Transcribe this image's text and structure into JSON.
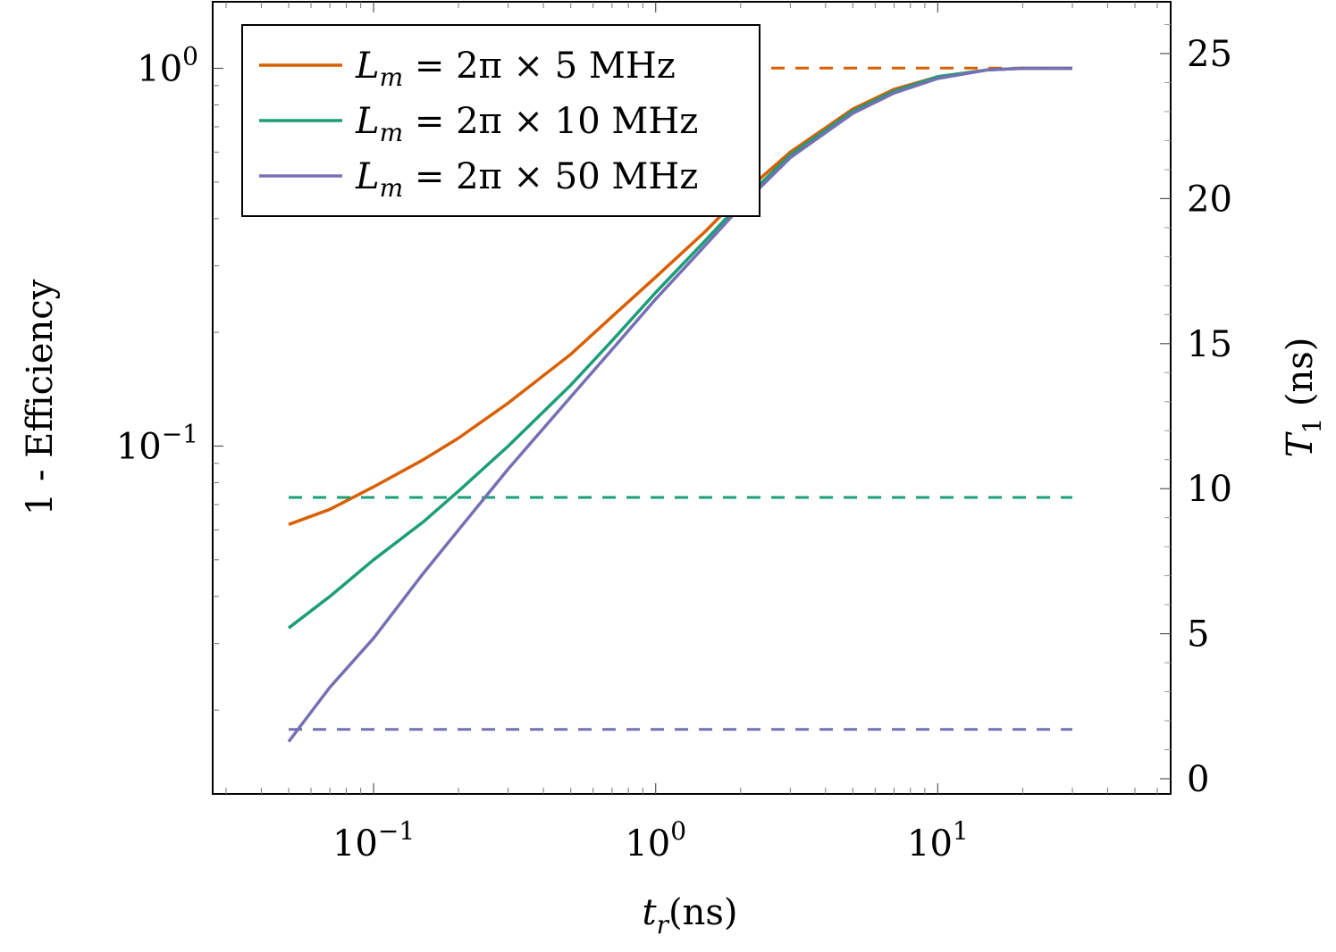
{
  "chart_data": {
    "type": "line",
    "title": "",
    "xlabel": "t_r (ns)",
    "ylabel_left": "1 - Efficiency",
    "ylabel_right": "T_1 (ns)",
    "x_scale": "log",
    "y_left_scale": "log",
    "xlim": [
      0.03,
      60
    ],
    "ylim_left": [
      0.012,
      1.5
    ],
    "ylim_right": [
      0,
      27
    ],
    "x_ticks": [
      {
        "value": 0.1,
        "mantissa": "10",
        "exp": "−1"
      },
      {
        "value": 1,
        "mantissa": "10",
        "exp": "0"
      },
      {
        "value": 10,
        "mantissa": "10",
        "exp": "1"
      }
    ],
    "y_left_ticks": [
      {
        "value": 1,
        "mantissa": "10",
        "exp": "0"
      },
      {
        "value": 0.1,
        "mantissa": "10",
        "exp": "−1"
      }
    ],
    "y_right_ticks": [
      "0",
      "5",
      "10",
      "15",
      "20",
      "25"
    ],
    "grid": false,
    "legend_position": "top-left",
    "series": [
      {
        "name": "Lm = 2π × 5 MHz",
        "legend_main": "L",
        "legend_sub": "m",
        "legend_rest": " = 2π × 5 MHz",
        "color": "#d95f02",
        "x": [
          0.05,
          0.07,
          0.1,
          0.15,
          0.2,
          0.3,
          0.5,
          0.7,
          1,
          1.5,
          2,
          3,
          5,
          7,
          10,
          15,
          20,
          30
        ],
        "y": [
          0.062,
          0.068,
          0.078,
          0.092,
          0.105,
          0.13,
          0.175,
          0.22,
          0.28,
          0.37,
          0.46,
          0.6,
          0.78,
          0.88,
          0.95,
          0.99,
          1.0,
          1.0
        ],
        "T1_ns": 24.5
      },
      {
        "name": "Lm = 2π × 10 MHz",
        "legend_main": "L",
        "legend_sub": "m",
        "legend_rest": " = 2π × 10 MHz",
        "color": "#1b9e77",
        "x": [
          0.05,
          0.07,
          0.1,
          0.15,
          0.2,
          0.3,
          0.5,
          0.7,
          1,
          1.5,
          2,
          3,
          5,
          7,
          10,
          15,
          20,
          30
        ],
        "y": [
          0.033,
          0.04,
          0.05,
          0.063,
          0.076,
          0.1,
          0.145,
          0.19,
          0.255,
          0.35,
          0.44,
          0.59,
          0.77,
          0.87,
          0.95,
          0.99,
          1.0,
          1.0
        ],
        "T1_ns": 9.7
      },
      {
        "name": "Lm = 2π × 50 MHz",
        "legend_main": "L",
        "legend_sub": "m",
        "legend_rest": " = 2π × 50 MHz",
        "color": "#7570b3",
        "x": [
          0.05,
          0.07,
          0.1,
          0.15,
          0.2,
          0.3,
          0.5,
          0.7,
          1,
          1.5,
          2,
          3,
          5,
          7,
          10,
          15,
          20,
          30
        ],
        "y": [
          0.0165,
          0.023,
          0.031,
          0.046,
          0.06,
          0.087,
          0.135,
          0.18,
          0.245,
          0.34,
          0.43,
          0.58,
          0.76,
          0.86,
          0.94,
          0.99,
          1.0,
          1.0
        ],
        "T1_ns": 1.7
      }
    ]
  }
}
